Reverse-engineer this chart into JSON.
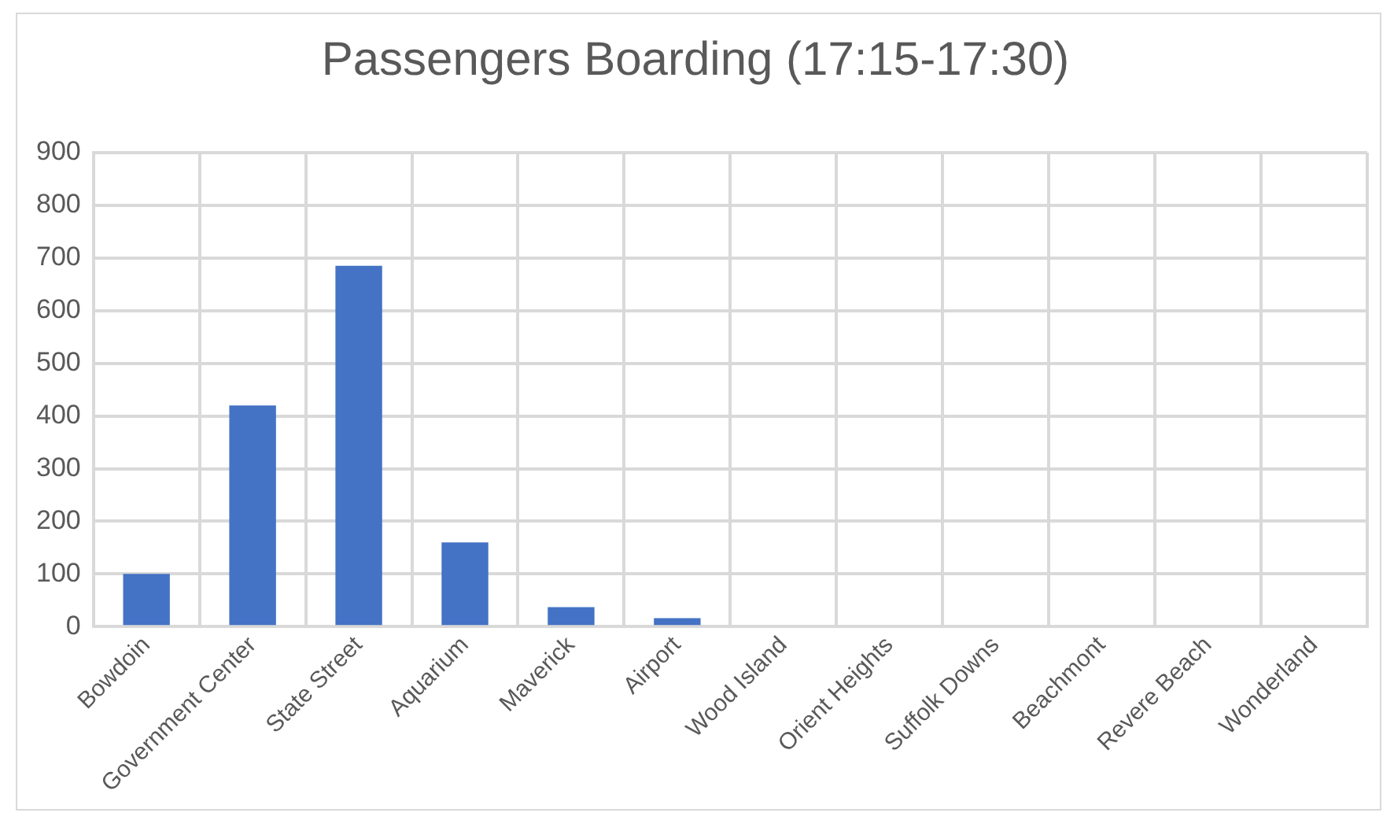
{
  "chart_data": {
    "type": "bar",
    "title": "Passengers Boarding (17:15-17:30)",
    "categories": [
      "Bowdoin",
      "Government Center",
      "State Street",
      "Aquarium",
      "Maverick",
      "Airport",
      "Wood Island",
      "Orient Heights",
      "Suffolk Downs",
      "Beachmont",
      "Revere Beach",
      "Wonderland"
    ],
    "values": [
      100,
      420,
      685,
      160,
      37,
      16,
      0,
      0,
      0,
      0,
      0,
      0
    ],
    "color": "#4472c4",
    "ylim": [
      0,
      900
    ],
    "yticks": [
      0,
      100,
      200,
      300,
      400,
      500,
      600,
      700,
      800,
      900
    ],
    "grid": true
  }
}
